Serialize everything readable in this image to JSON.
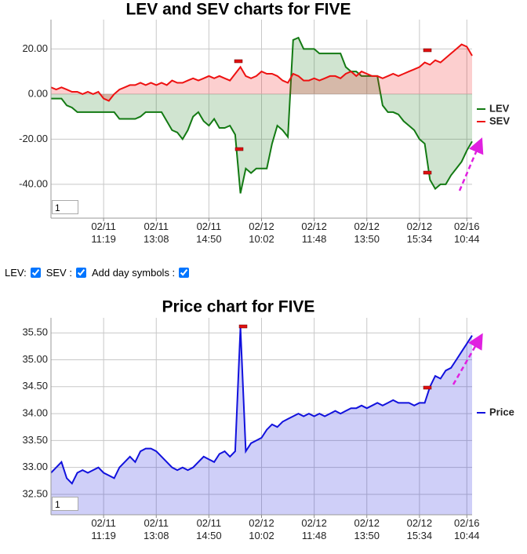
{
  "chart_data": [
    {
      "type": "area",
      "title": "LEV and SEV charts for FIVE",
      "categories": [
        null,
        null,
        null,
        null,
        null,
        null,
        null,
        null,
        null,
        null,
        "02/11\n11:19",
        null,
        null,
        null,
        null,
        null,
        null,
        null,
        null,
        null,
        "02/11\n13:08",
        null,
        null,
        null,
        null,
        null,
        null,
        null,
        null,
        null,
        "02/11\n14:50",
        null,
        null,
        null,
        null,
        null,
        null,
        null,
        null,
        null,
        "02/12\n10:02",
        null,
        null,
        null,
        null,
        null,
        null,
        null,
        null,
        null,
        "02/12\n11:48",
        null,
        null,
        null,
        null,
        null,
        null,
        null,
        null,
        null,
        "02/12\n13:50",
        null,
        null,
        null,
        null,
        null,
        null,
        null,
        null,
        null,
        "02/12\n15:34",
        null,
        null,
        null,
        null,
        null,
        null,
        null,
        null,
        "02/16\n10:44",
        null
      ],
      "series": [
        {
          "name": "LEV",
          "color": "#137a13",
          "values": [
            -2,
            -2,
            -2,
            -5,
            -6,
            -8,
            -8,
            -8,
            -8,
            -8,
            -8,
            -8,
            -8,
            -11,
            -11,
            -11,
            -11,
            -10,
            -8,
            -8,
            -8,
            -8,
            -12,
            -16,
            -17,
            -20,
            -16,
            -10,
            -8,
            -12,
            -14,
            -11,
            -15,
            -15,
            -14,
            -18,
            -44,
            -33,
            -35,
            -33,
            -33,
            -33,
            -22,
            -14,
            -16,
            -19,
            24,
            25,
            20,
            20,
            20,
            18,
            18,
            18,
            18,
            18,
            12,
            10,
            10,
            8,
            8,
            8,
            8,
            -5,
            -8,
            -8,
            -9,
            -12,
            -14,
            -16,
            -20,
            -22,
            -38,
            -42,
            -40,
            -40,
            -36,
            -33,
            -30,
            -25,
            -21
          ]
        },
        {
          "name": "SEV",
          "color": "#ee1111",
          "values": [
            3,
            2,
            3,
            2,
            1,
            1,
            0,
            1,
            0,
            1,
            -2,
            -3,
            0,
            2,
            3,
            4,
            4,
            5,
            4,
            5,
            4,
            5,
            4,
            6,
            5,
            5,
            6,
            7,
            6,
            7,
            8,
            7,
            8,
            7,
            6,
            9,
            12,
            8,
            7,
            8,
            10,
            9,
            9,
            8,
            6,
            5,
            9,
            8,
            6,
            6,
            7,
            6,
            7,
            8,
            8,
            7,
            9,
            10,
            8,
            10,
            9,
            8,
            8,
            7,
            8,
            9,
            8,
            9,
            10,
            11,
            12,
            14,
            13,
            15,
            14,
            16,
            18,
            20,
            22,
            21,
            17
          ]
        }
      ],
      "ylim": [
        -55,
        33
      ],
      "yticks": [
        {
          "value": -40,
          "label": "-40.00"
        },
        {
          "value": -20,
          "label": "-20.00"
        },
        {
          "value": 0,
          "label": "0.00"
        },
        {
          "value": 20,
          "label": "20.00"
        }
      ],
      "grid": true,
      "legend": "right"
    },
    {
      "type": "area",
      "title": "Price chart for FIVE",
      "categories": [
        null,
        null,
        null,
        null,
        null,
        null,
        null,
        null,
        null,
        null,
        "02/11\n11:19",
        null,
        null,
        null,
        null,
        null,
        null,
        null,
        null,
        null,
        "02/11\n13:08",
        null,
        null,
        null,
        null,
        null,
        null,
        null,
        null,
        null,
        "02/11\n14:50",
        null,
        null,
        null,
        null,
        null,
        null,
        null,
        null,
        null,
        "02/12\n10:02",
        null,
        null,
        null,
        null,
        null,
        null,
        null,
        null,
        null,
        "02/12\n11:48",
        null,
        null,
        null,
        null,
        null,
        null,
        null,
        null,
        null,
        "02/12\n13:50",
        null,
        null,
        null,
        null,
        null,
        null,
        null,
        null,
        null,
        "02/12\n15:34",
        null,
        null,
        null,
        null,
        null,
        null,
        null,
        null,
        "02/16\n10:44",
        null
      ],
      "series": [
        {
          "name": "Price",
          "color": "#1111dd",
          "values": [
            32.9,
            33.0,
            33.1,
            32.8,
            32.7,
            32.9,
            32.95,
            32.9,
            32.95,
            33.0,
            32.9,
            32.85,
            32.8,
            33.0,
            33.1,
            33.2,
            33.1,
            33.3,
            33.35,
            33.35,
            33.3,
            33.2,
            33.1,
            33.0,
            32.95,
            33.0,
            32.95,
            33.0,
            33.1,
            33.2,
            33.15,
            33.1,
            33.25,
            33.3,
            33.2,
            33.3,
            35.6,
            33.3,
            33.45,
            33.5,
            33.55,
            33.7,
            33.8,
            33.75,
            33.85,
            33.9,
            33.95,
            34.0,
            33.95,
            34.0,
            33.95,
            34.0,
            33.95,
            34.0,
            34.05,
            34.0,
            34.05,
            34.1,
            34.1,
            34.15,
            34.1,
            34.15,
            34.2,
            34.15,
            34.2,
            34.25,
            34.2,
            34.2,
            34.2,
            34.15,
            34.2,
            34.2,
            34.5,
            34.7,
            34.65,
            34.8,
            34.85,
            35.0,
            35.15,
            35.3,
            35.45
          ]
        }
      ],
      "ylim": [
        32.12,
        35.78
      ],
      "yticks": [
        {
          "value": 32.5,
          "label": "32.50"
        },
        {
          "value": 33,
          "label": "33.00"
        },
        {
          "value": 33.5,
          "label": "33.50"
        },
        {
          "value": 34,
          "label": "34.00"
        },
        {
          "value": 34.5,
          "label": "34.50"
        },
        {
          "value": 35,
          "label": "35.00"
        },
        {
          "value": 35.5,
          "label": "35.50"
        }
      ],
      "grid": true,
      "legend": "right"
    }
  ],
  "controls": [
    "LEV:",
    "SEV :",
    "Add day symbols :"
  ],
  "range_inputs": [
    "1",
    "1"
  ]
}
